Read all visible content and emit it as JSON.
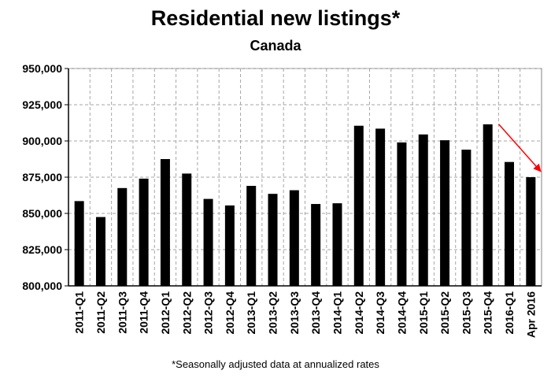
{
  "chart_data": {
    "type": "bar",
    "title": "Residential new listings*",
    "subtitle": "Canada",
    "footnote": "*Seasonally adjusted data at annualized rates",
    "categories": [
      "2011-Q1",
      "2011-Q2",
      "2011-Q3",
      "2011-Q4",
      "2012-Q1",
      "2012-Q2",
      "2012-Q3",
      "2012-Q4",
      "2013-Q1",
      "2013-Q2",
      "2013-Q3",
      "2013-Q4",
      "2014-Q1",
      "2014-Q2",
      "2014-Q3",
      "2014-Q4",
      "2015-Q1",
      "2015-Q2",
      "2015-Q3",
      "2015-Q4",
      "2016-Q1",
      "Apr 2016"
    ],
    "values": [
      858500,
      847500,
      867500,
      874000,
      887500,
      877500,
      860000,
      855500,
      869000,
      863500,
      866000,
      856500,
      857000,
      910500,
      908500,
      899000,
      904500,
      900500,
      894000,
      911500,
      885500,
      875000
    ],
    "ylim": [
      800000,
      950000
    ],
    "yticks": [
      800000,
      825000,
      850000,
      875000,
      900000,
      925000,
      950000
    ],
    "ytick_labels": [
      "800,000",
      "825,000",
      "850,000",
      "875,000",
      "900,000",
      "925,000",
      "950,000"
    ],
    "grid": true,
    "bar_color": "#000000",
    "arrow_color": "#ff0000"
  }
}
